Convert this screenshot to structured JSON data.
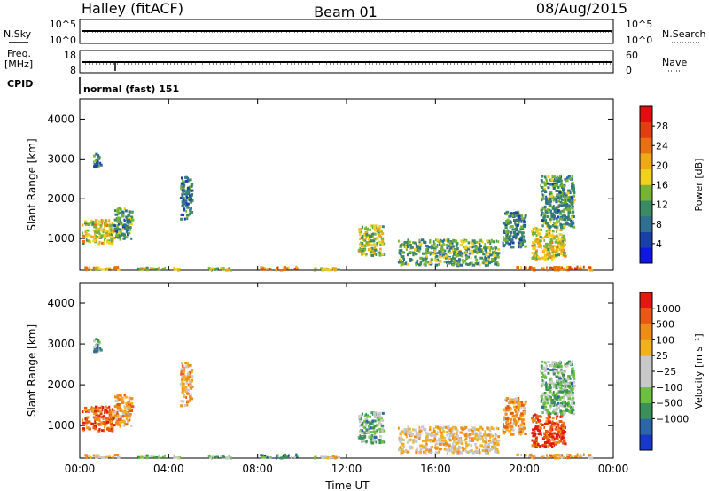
{
  "header": {
    "radar": "Halley (fitACF)",
    "beam": "Beam 01",
    "date": "08/Aug/2015"
  },
  "strip_labels": {
    "nsky": "N.Sky",
    "nsky_ticks": [
      "10^5",
      "10^0"
    ],
    "nsearch": "N.Search",
    "nsearch_ticks": [
      "10^5",
      "10^0"
    ],
    "freq_line1": "Freq.",
    "freq_line2": "[MHz]",
    "freq_ticks": [
      "18",
      "8"
    ],
    "nave": "Nave",
    "nave_ticks": [
      "60",
      "0"
    ],
    "cpid": "CPID",
    "mode": "normal (fast) 151"
  },
  "chart_data": [
    {
      "type": "heatmap",
      "name": "power",
      "ylabel": "Slant Range [km]",
      "xlabel": "",
      "xlim": [
        0,
        24
      ],
      "ylim": [
        200,
        4500
      ],
      "xticks": [
        "00:00",
        "04:00",
        "08:00",
        "12:00",
        "16:00",
        "20:00",
        "00:00"
      ],
      "yticks": [
        1000,
        2000,
        3000,
        4000
      ],
      "colorbar": {
        "label": "Power [dB]",
        "ticks": [
          "4",
          "8",
          "12",
          "16",
          "20",
          "24",
          "28"
        ],
        "colors": [
          "#1018e0",
          "#1840a8",
          "#2f6f8f",
          "#3c8a64",
          "#78b434",
          "#f0d020",
          "#f0a818",
          "#e87010",
          "#e04010",
          "#e01010"
        ]
      },
      "regions": [
        {
          "t0": 0.1,
          "t1": 1.5,
          "r0": 900,
          "r1": 1500,
          "level": 0.55
        },
        {
          "t0": 1.5,
          "t1": 2.3,
          "r0": 1000,
          "r1": 1800,
          "level": 0.35
        },
        {
          "t0": 0.6,
          "t1": 0.9,
          "r0": 2800,
          "r1": 3150,
          "level": 0.3
        },
        {
          "t0": 0.1,
          "t1": 1.7,
          "r0": 230,
          "r1": 320,
          "level": 0.6
        },
        {
          "t0": 2.5,
          "t1": 4.5,
          "r0": 230,
          "r1": 300,
          "level": 0.55
        },
        {
          "t0": 5.6,
          "t1": 6.8,
          "r0": 230,
          "r1": 290,
          "level": 0.5
        },
        {
          "t0": 8.1,
          "t1": 9.8,
          "r0": 230,
          "r1": 320,
          "level": 0.75
        },
        {
          "t0": 10.4,
          "t1": 11.6,
          "r0": 230,
          "r1": 290,
          "level": 0.5
        },
        {
          "t0": 12.5,
          "t1": 13.6,
          "r0": 600,
          "r1": 1350,
          "level": 0.5
        },
        {
          "t0": 14.3,
          "t1": 18.8,
          "r0": 350,
          "r1": 1000,
          "level": 0.4
        },
        {
          "t0": 19.0,
          "t1": 20.0,
          "r0": 800,
          "r1": 1700,
          "level": 0.3
        },
        {
          "t0": 20.3,
          "t1": 21.8,
          "r0": 500,
          "r1": 1300,
          "level": 0.55
        },
        {
          "t0": 20.7,
          "t1": 22.2,
          "r0": 1300,
          "r1": 2600,
          "level": 0.35
        },
        {
          "t0": 19.6,
          "t1": 23.0,
          "r0": 230,
          "r1": 320,
          "level": 0.7
        },
        {
          "t0": 4.5,
          "t1": 5.0,
          "r0": 1500,
          "r1": 2600,
          "level": 0.3
        }
      ]
    },
    {
      "type": "heatmap",
      "name": "velocity",
      "ylabel": "Slant Range [km]",
      "xlabel": "Time UT",
      "xlim": [
        0,
        24
      ],
      "ylim": [
        200,
        4500
      ],
      "xticks": [
        "00:00",
        "04:00",
        "08:00",
        "12:00",
        "16:00",
        "20:00",
        "00:00"
      ],
      "yticks": [
        1000,
        2000,
        3000,
        4000
      ],
      "colorbar": {
        "label": "Velocity [m s⁻¹]",
        "ticks": [
          "1000",
          "500",
          "100",
          "25",
          "−25",
          "−100",
          "−500",
          "−1000"
        ],
        "colors": [
          "#1838c8",
          "#2c66a8",
          "#3a9058",
          "#6cc040",
          "#c8c8c8",
          "#c8c8c8",
          "#f0b020",
          "#f08a18",
          "#e85a14",
          "#e01a10"
        ]
      },
      "regions": [
        {
          "t0": 0.1,
          "t1": 1.5,
          "r0": 900,
          "r1": 1500,
          "level": 0.85
        },
        {
          "t0": 1.5,
          "t1": 2.3,
          "r0": 1000,
          "r1": 1800,
          "level": 0.72
        },
        {
          "t0": 0.6,
          "t1": 0.9,
          "r0": 2800,
          "r1": 3150,
          "level": 0.3
        },
        {
          "t0": 0.1,
          "t1": 1.7,
          "r0": 230,
          "r1": 320,
          "level": 0.6
        },
        {
          "t0": 2.5,
          "t1": 4.5,
          "r0": 230,
          "r1": 300,
          "level": 0.45
        },
        {
          "t0": 5.6,
          "t1": 6.8,
          "r0": 230,
          "r1": 290,
          "level": 0.35
        },
        {
          "t0": 8.1,
          "t1": 9.8,
          "r0": 230,
          "r1": 320,
          "level": 0.25
        },
        {
          "t0": 10.4,
          "t1": 11.6,
          "r0": 230,
          "r1": 290,
          "level": 0.55
        },
        {
          "t0": 12.5,
          "t1": 13.6,
          "r0": 600,
          "r1": 1350,
          "level": 0.35
        },
        {
          "t0": 14.3,
          "t1": 18.8,
          "r0": 350,
          "r1": 1000,
          "level": 0.62
        },
        {
          "t0": 19.0,
          "t1": 20.0,
          "r0": 800,
          "r1": 1700,
          "level": 0.72
        },
        {
          "t0": 20.3,
          "t1": 21.8,
          "r0": 500,
          "r1": 1300,
          "level": 0.9
        },
        {
          "t0": 20.7,
          "t1": 22.2,
          "r0": 1300,
          "r1": 2600,
          "level": 0.35
        },
        {
          "t0": 19.6,
          "t1": 23.0,
          "r0": 230,
          "r1": 320,
          "level": 0.65
        },
        {
          "t0": 4.5,
          "t1": 5.0,
          "r0": 1500,
          "r1": 2600,
          "level": 0.7
        }
      ]
    }
  ]
}
